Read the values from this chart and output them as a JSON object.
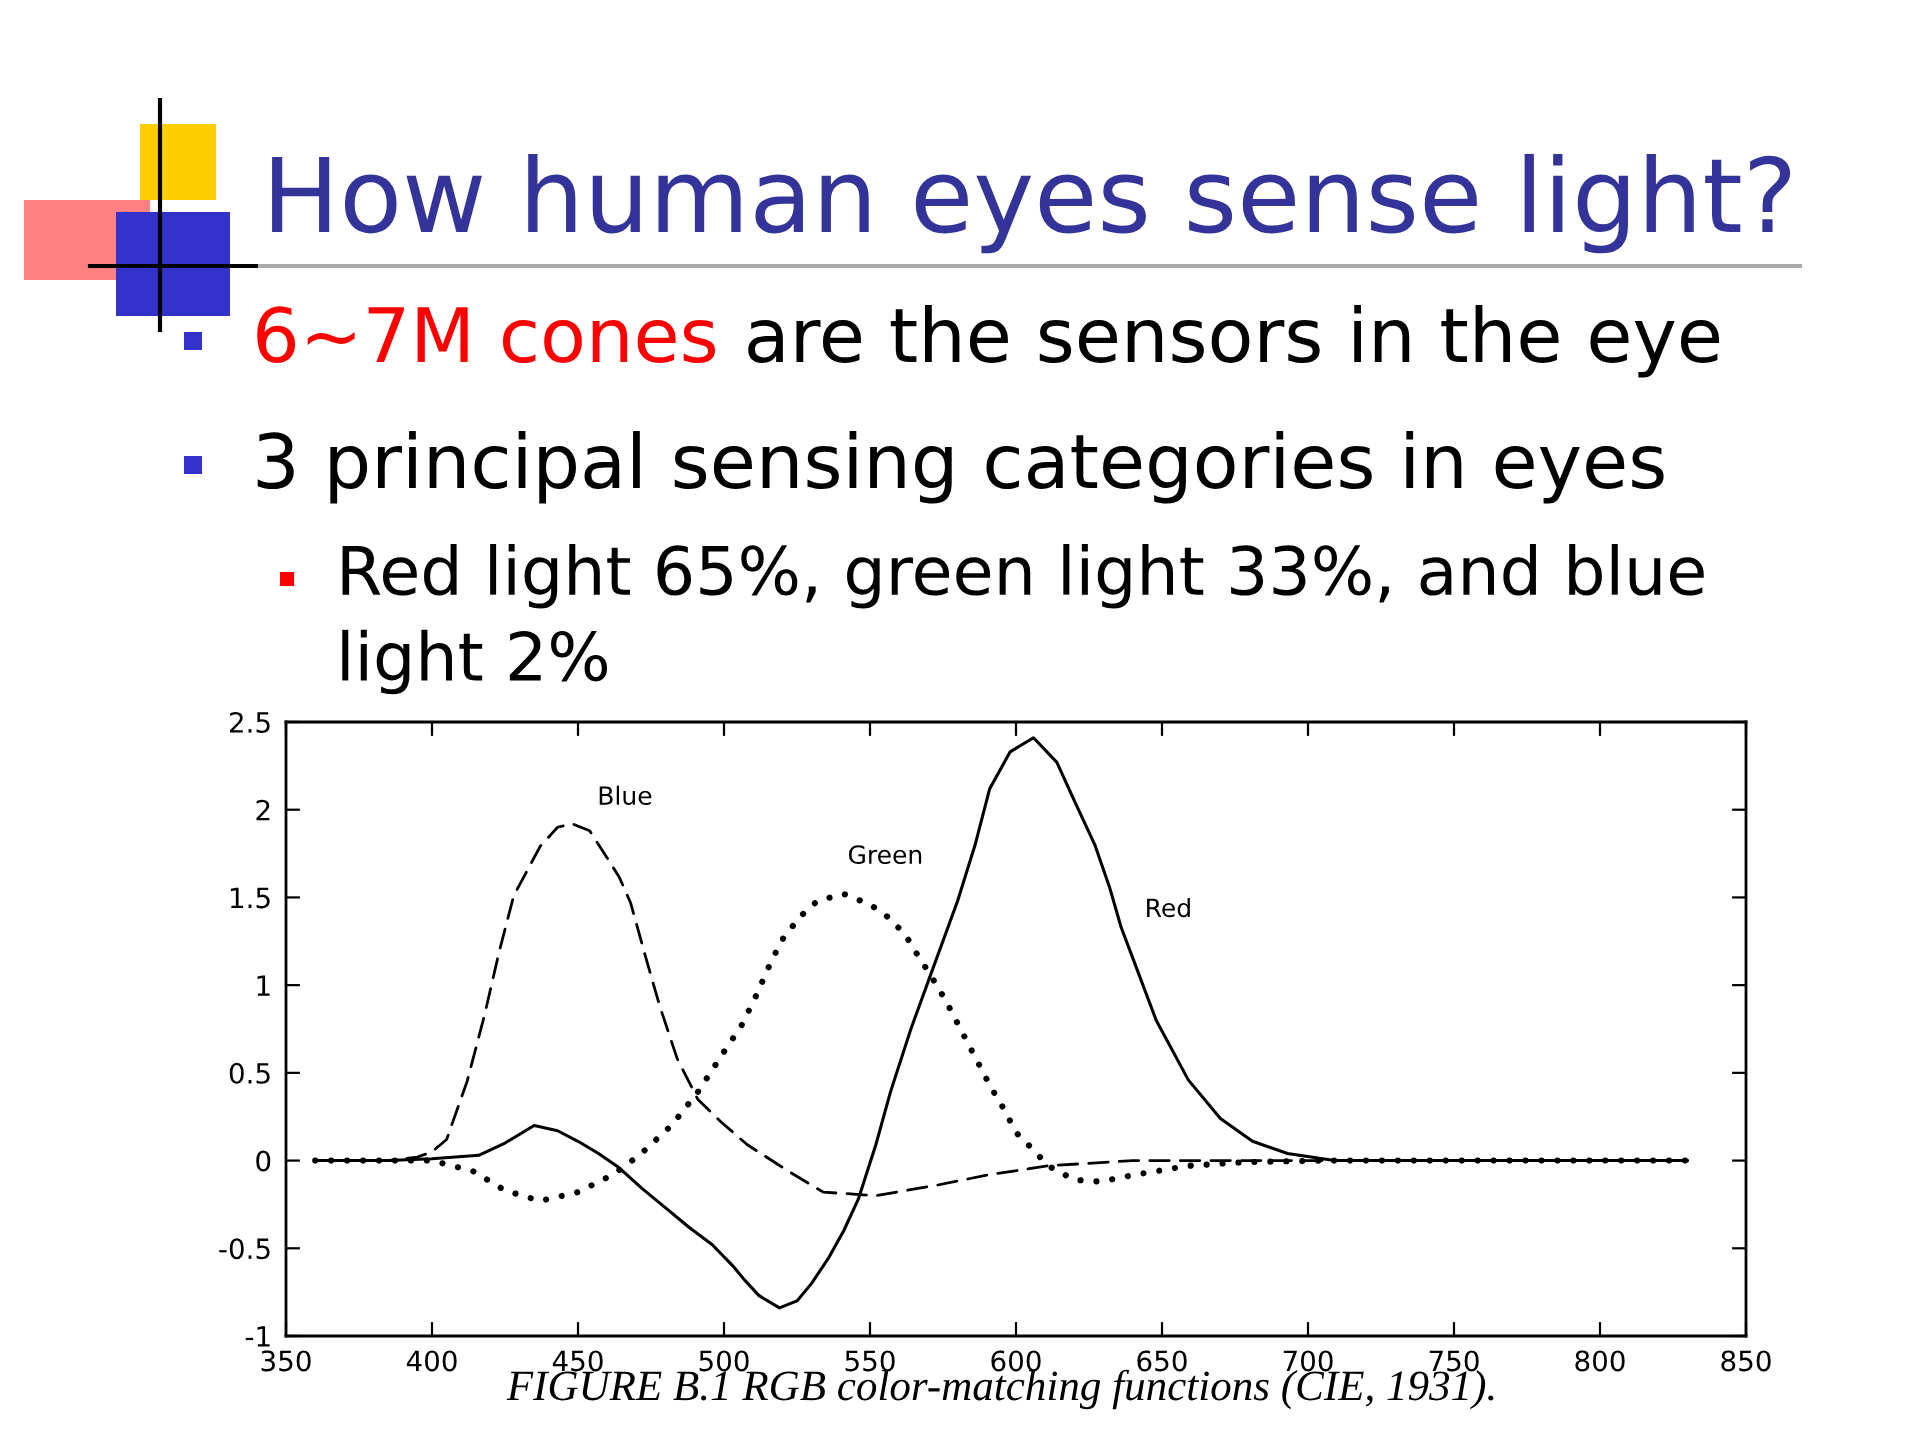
{
  "chart_data": {
    "type": "line",
    "title": "How human eyes sense light?",
    "annotations": [
      "6~7M cones",
      "are the sensors in the eye",
      "3 principal sensing categories in eyes",
      "Red light 65%, green light 33%, and blue light 2%",
      "FIGURE B.1 RGB color-matching functions (CIE, 1931)."
    ],
    "series": [
      {
        "name": "Blue",
        "color": "#000000",
        "line_style": "dashed",
        "x": [
          360,
          385,
          395,
          400,
          405,
          412,
          418,
          423,
          428,
          437,
          443,
          448,
          454,
          459,
          464,
          468,
          473,
          478,
          484,
          491,
          499,
          508,
          522,
          534,
          552,
          573,
          591,
          611,
          640,
          700,
          830
        ],
        "values": [
          0,
          0,
          0.02,
          0.05,
          0.12,
          0.45,
          0.83,
          1.19,
          1.51,
          1.79,
          1.9,
          1.92,
          1.88,
          1.75,
          1.62,
          1.47,
          1.17,
          0.88,
          0.58,
          0.35,
          0.22,
          0.09,
          -0.06,
          -0.18,
          -0.2,
          -0.14,
          -0.08,
          -0.03,
          0,
          0,
          0
        ]
      },
      {
        "name": "Green",
        "color": "#000000",
        "line_style": "dotted",
        "x": [
          360,
          385,
          400,
          414,
          425,
          437,
          450,
          462,
          471,
          482,
          491,
          500,
          506,
          511,
          516,
          520,
          526,
          532,
          541,
          550,
          556,
          562,
          566,
          571,
          576,
          581,
          586,
          591,
          596,
          600,
          606,
          611,
          620,
          629,
          641,
          659,
          677,
          704,
          830
        ],
        "values": [
          0,
          0,
          0,
          -0.06,
          -0.17,
          -0.23,
          -0.18,
          -0.08,
          0.03,
          0.2,
          0.39,
          0.62,
          0.77,
          0.94,
          1.13,
          1.26,
          1.39,
          1.48,
          1.52,
          1.46,
          1.39,
          1.29,
          1.18,
          1.05,
          0.91,
          0.75,
          0.59,
          0.43,
          0.29,
          0.16,
          0.06,
          -0.03,
          -0.11,
          -0.12,
          -0.08,
          -0.03,
          -0.01,
          0,
          0
        ]
      },
      {
        "name": "Red",
        "color": "#000000",
        "line_style": "solid",
        "x": [
          360,
          385,
          400,
          416,
          425,
          435,
          443,
          450,
          457,
          464,
          472,
          480,
          488,
          496,
          503,
          507,
          512,
          519,
          525,
          530,
          536,
          541,
          546,
          552,
          557,
          564,
          571,
          580,
          586,
          591,
          598,
          606,
          614,
          620,
          627,
          632,
          636,
          641,
          648,
          659,
          670,
          681,
          693,
          709,
          830
        ],
        "values": [
          0,
          0,
          0.01,
          0.03,
          0.1,
          0.2,
          0.17,
          0.11,
          0.04,
          -0.04,
          -0.16,
          -0.27,
          -0.38,
          -0.48,
          -0.6,
          -0.68,
          -0.77,
          -0.84,
          -0.8,
          -0.7,
          -0.55,
          -0.4,
          -0.22,
          0.09,
          0.39,
          0.75,
          1.07,
          1.48,
          1.8,
          2.12,
          2.33,
          2.41,
          2.27,
          2.05,
          1.8,
          1.56,
          1.33,
          1.11,
          0.8,
          0.46,
          0.24,
          0.11,
          0.04,
          0,
          0
        ]
      }
    ],
    "xlim": [
      350,
      850
    ],
    "ylim": [
      -1,
      2.5
    ],
    "xticks": [
      350,
      400,
      450,
      500,
      550,
      600,
      650,
      700,
      750,
      800,
      850
    ],
    "yticks": [
      -1,
      -0.5,
      0,
      0.5,
      1,
      1.5,
      2,
      2.5
    ]
  }
}
